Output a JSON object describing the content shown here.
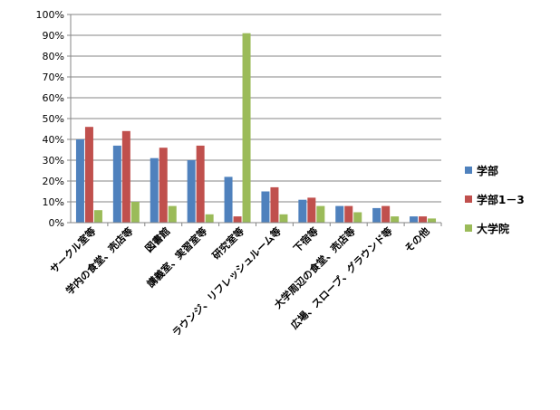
{
  "chart_data": {
    "type": "bar",
    "categories": [
      "サークル室等",
      "学内の食堂、売店等",
      "図書館",
      "講義室、実習室等",
      "研究室等",
      "ラウンジ、リフレッシュルーム等",
      "下宿等",
      "大学周辺の食堂、売店等",
      "広場、スロープ、グラウンド等",
      "その他"
    ],
    "series": [
      {
        "name": "学部",
        "color": "#4F81BD",
        "values": [
          40,
          37,
          31,
          30,
          22,
          15,
          11,
          8,
          7,
          3
        ]
      },
      {
        "name": "学部1－3",
        "color": "#C0504D",
        "values": [
          46,
          44,
          36,
          37,
          3,
          17,
          12,
          8,
          8,
          3
        ]
      },
      {
        "name": "大学院",
        "color": "#9BBB59",
        "values": [
          6,
          10,
          8,
          4,
          91,
          4,
          8,
          5,
          3,
          2
        ]
      }
    ],
    "y_ticks": [
      "0%",
      "10%",
      "20%",
      "30%",
      "40%",
      "50%",
      "60%",
      "70%",
      "80%",
      "90%",
      "100%"
    ],
    "ylim": [
      0,
      100
    ],
    "grid": true,
    "legend_position": "right"
  }
}
